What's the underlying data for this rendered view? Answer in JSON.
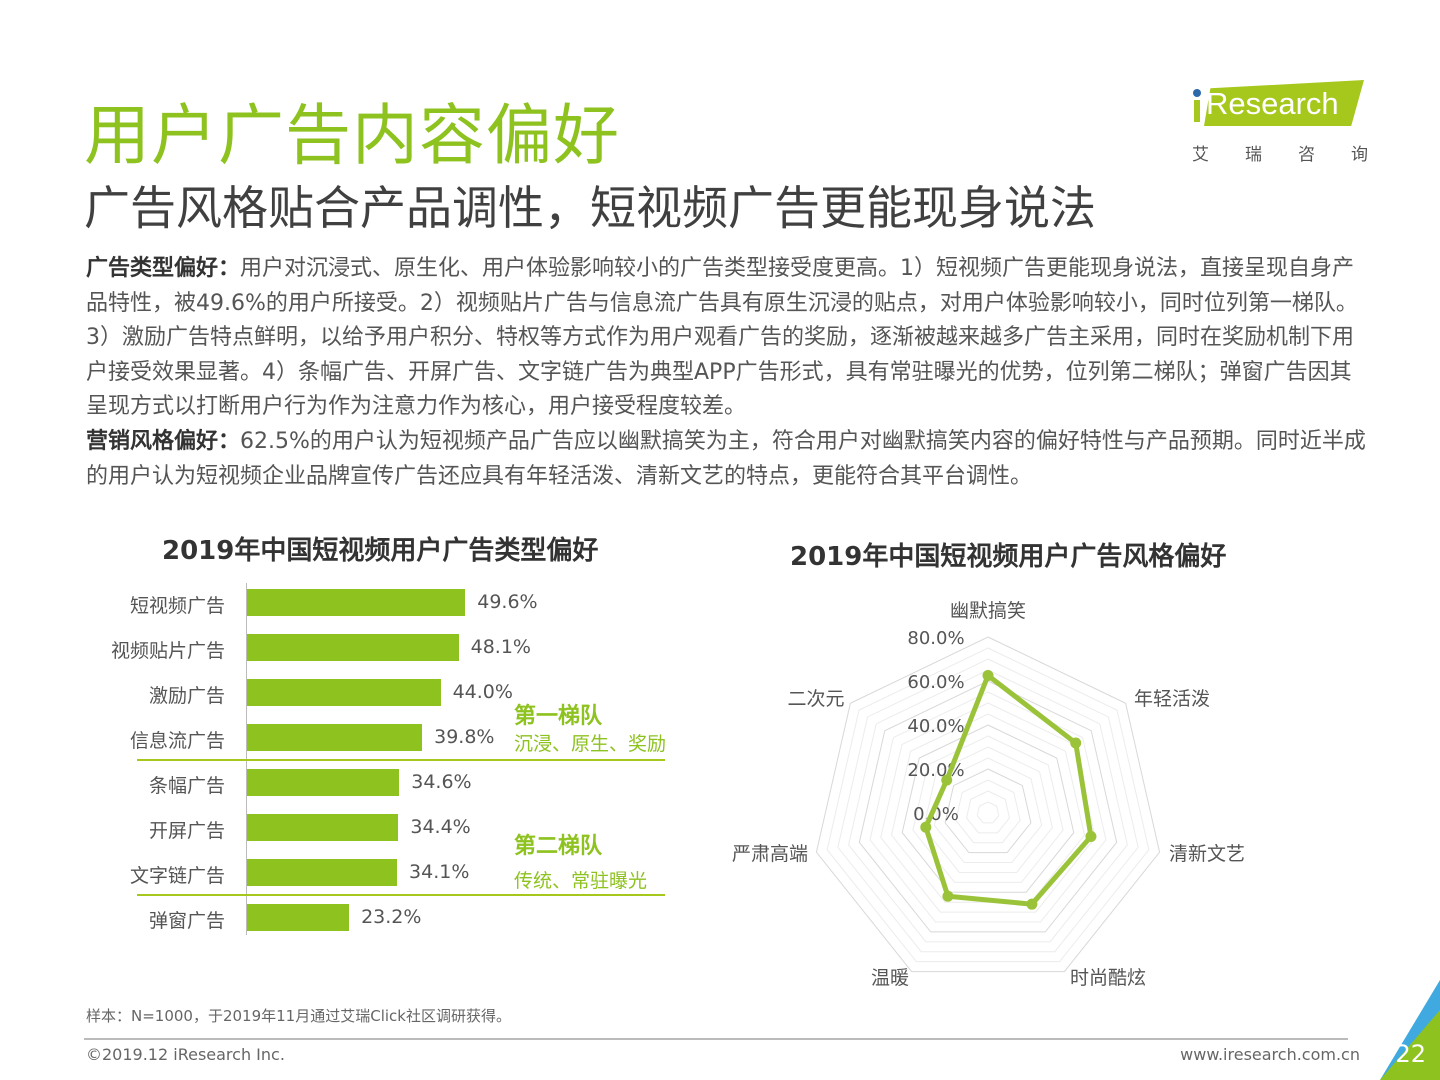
{
  "header": {
    "title": "用户广告内容偏好",
    "subtitle": "广告风格贴合产品调性，短视频广告更能现身说法"
  },
  "logo": {
    "text": "Research",
    "cn": [
      "艾",
      "瑞",
      "咨",
      "询"
    ]
  },
  "body": {
    "p1_label": "广告类型偏好：",
    "p1_text": "用户对沉浸式、原生化、用户体验影响较小的广告类型接受度更高。1）短视频广告更能现身说法，直接呈现自身产品特性，被49.6%的用户所接受。2）视频贴片广告与信息流广告具有原生沉浸的贴点，对用户体验影响较小，同时位列第一梯队。3）激励广告特点鲜明，以给予用户积分、特权等方式作为用户观看广告的奖励，逐渐被越来越多广告主采用，同时在奖励机制下用户接受效果显著。4）条幅广告、开屏广告、文字链广告为典型APP广告形式，具有常驻曝光的优势，位列第二梯队；弹窗广告因其呈现方式以打断用户行为作为注意力作为核心，用户接受程度较差。",
    "p2_label": "营销风格偏好：",
    "p2_text": "62.5%的用户认为短视频产品广告应以幽默搞笑为主，符合用户对幽默搞笑内容的偏好特性与产品预期。同时近半成的用户认为短视频企业品牌宣传广告还应具有年轻活泼、清新文艺的特点，更能符合其平台调性。"
  },
  "chart_data": [
    {
      "type": "bar",
      "orientation": "horizontal",
      "title": "2019年中国短视频用户广告类型偏好",
      "categories": [
        "短视频广告",
        "视频贴片广告",
        "激励广告",
        "信息流广告",
        "条幅广告",
        "开屏广告",
        "文字链广告",
        "弹窗广告"
      ],
      "values": [
        49.6,
        48.1,
        44.0,
        39.8,
        34.6,
        34.4,
        34.1,
        23.2
      ],
      "value_labels": [
        "49.6%",
        "48.1%",
        "44.0%",
        "39.8%",
        "34.6%",
        "34.4%",
        "34.1%",
        "23.2%"
      ],
      "unit": "%",
      "color": "#8dc21f",
      "annotations": [
        {
          "title": "第一梯队",
          "subtitle": "沉浸、原生、奖励"
        },
        {
          "title": "第二梯队",
          "subtitle": "传统、常驻曝光"
        }
      ]
    },
    {
      "type": "radar",
      "title": "2019年中国短视频用户广告风格偏好",
      "categories": [
        "幽默搞笑",
        "年轻活泼",
        "清新文艺",
        "时尚酷炫",
        "温暖",
        "严肃高端",
        "二次元"
      ],
      "values": [
        62.5,
        51,
        48,
        46,
        42,
        29,
        24
      ],
      "ticks": [
        "0.0%",
        "20.0%",
        "40.0%",
        "60.0%",
        "80.0%"
      ],
      "range": [
        0,
        80
      ],
      "color": "#9bc33a"
    }
  ],
  "footer": {
    "note": "样本：N=1000，于2019年11月通过艾瑞Click社区调研获得。",
    "copyright": "©2019.12 iResearch Inc.",
    "website": "www.iresearch.com.cn",
    "page": "22"
  }
}
